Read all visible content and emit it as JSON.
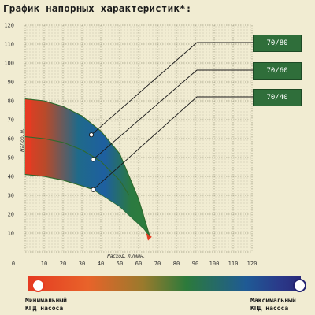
{
  "title": "График напорных характеристик*:",
  "chart_data": {
    "type": "line",
    "xlabel": "Расход, л./мин.",
    "ylabel": "Напор, м.",
    "xlim": [
      0,
      120
    ],
    "ylim": [
      0,
      120
    ],
    "x_ticks": [
      0,
      10,
      20,
      30,
      40,
      50,
      60,
      70,
      80,
      90,
      100,
      110,
      120
    ],
    "y_ticks": [
      10,
      20,
      30,
      40,
      50,
      60,
      70,
      80,
      90,
      100,
      110,
      120
    ],
    "grid": true,
    "series": [
      {
        "name": "70/80",
        "x": [
          0,
          10,
          20,
          30,
          40,
          50,
          60,
          66
        ],
        "y": [
          81,
          80,
          77,
          72,
          64,
          52,
          28,
          8
        ]
      },
      {
        "name": "70/60",
        "x": [
          0,
          10,
          20,
          30,
          40,
          50,
          55
        ],
        "y": [
          61,
          60,
          58,
          54,
          48,
          38,
          30
        ]
      },
      {
        "name": "70/40",
        "x": [
          0,
          10,
          20,
          30,
          36
        ],
        "y": [
          41,
          40,
          38,
          35,
          33
        ]
      }
    ],
    "markers": [
      {
        "series": "70/80",
        "x": 35,
        "y": 62
      },
      {
        "series": "70/60",
        "x": 36,
        "y": 49
      },
      {
        "series": "70/40",
        "x": 36,
        "y": 33
      }
    ]
  },
  "legend": {
    "min_label_line1": "Минимальный",
    "min_label_line2": "КПД насоса",
    "max_label_line1": "Максимальный",
    "max_label_line2": "КПД насоса",
    "min_color": "#e53b22",
    "max_color": "#232370"
  }
}
